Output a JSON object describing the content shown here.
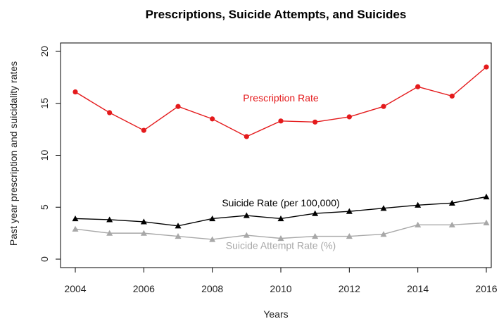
{
  "chart_data": {
    "type": "line",
    "title": "Prescriptions, Suicide Attempts, and Suicides",
    "xlabel": "Years",
    "ylabel": "Past year prescription and suicidality rates",
    "xlim": [
      2004,
      2016
    ],
    "ylim": [
      0,
      20
    ],
    "x_ticks": [
      2004,
      2006,
      2008,
      2010,
      2012,
      2014,
      2016
    ],
    "y_ticks": [
      0,
      5,
      10,
      15,
      20
    ],
    "grid": false,
    "x": [
      2004,
      2005,
      2006,
      2007,
      2008,
      2009,
      2010,
      2011,
      2012,
      2013,
      2014,
      2015,
      2016
    ],
    "series": [
      {
        "name": "Prescription Rate",
        "color": "#e41a1c",
        "marker": "circle",
        "values": [
          16.1,
          14.1,
          12.4,
          14.7,
          13.5,
          11.8,
          13.3,
          13.2,
          13.7,
          14.7,
          16.6,
          15.7,
          18.5
        ],
        "label_at": [
          2010,
          15.2
        ]
      },
      {
        "name": "Suicide Rate (per 100,000)",
        "color": "#000000",
        "marker": "triangle",
        "values": [
          3.9,
          3.8,
          3.6,
          3.2,
          3.9,
          4.2,
          3.9,
          4.4,
          4.6,
          4.9,
          5.2,
          5.4,
          6.0
        ],
        "label_at": [
          2010,
          5.1
        ]
      },
      {
        "name": "Suicide Attempt Rate (%)",
        "color": "#a8a8a8",
        "marker": "triangle",
        "values": [
          2.9,
          2.5,
          2.5,
          2.2,
          1.9,
          2.3,
          2.0,
          2.2,
          2.2,
          2.4,
          3.3,
          3.3,
          3.5
        ],
        "label_at": [
          2010,
          1.0
        ]
      }
    ]
  }
}
